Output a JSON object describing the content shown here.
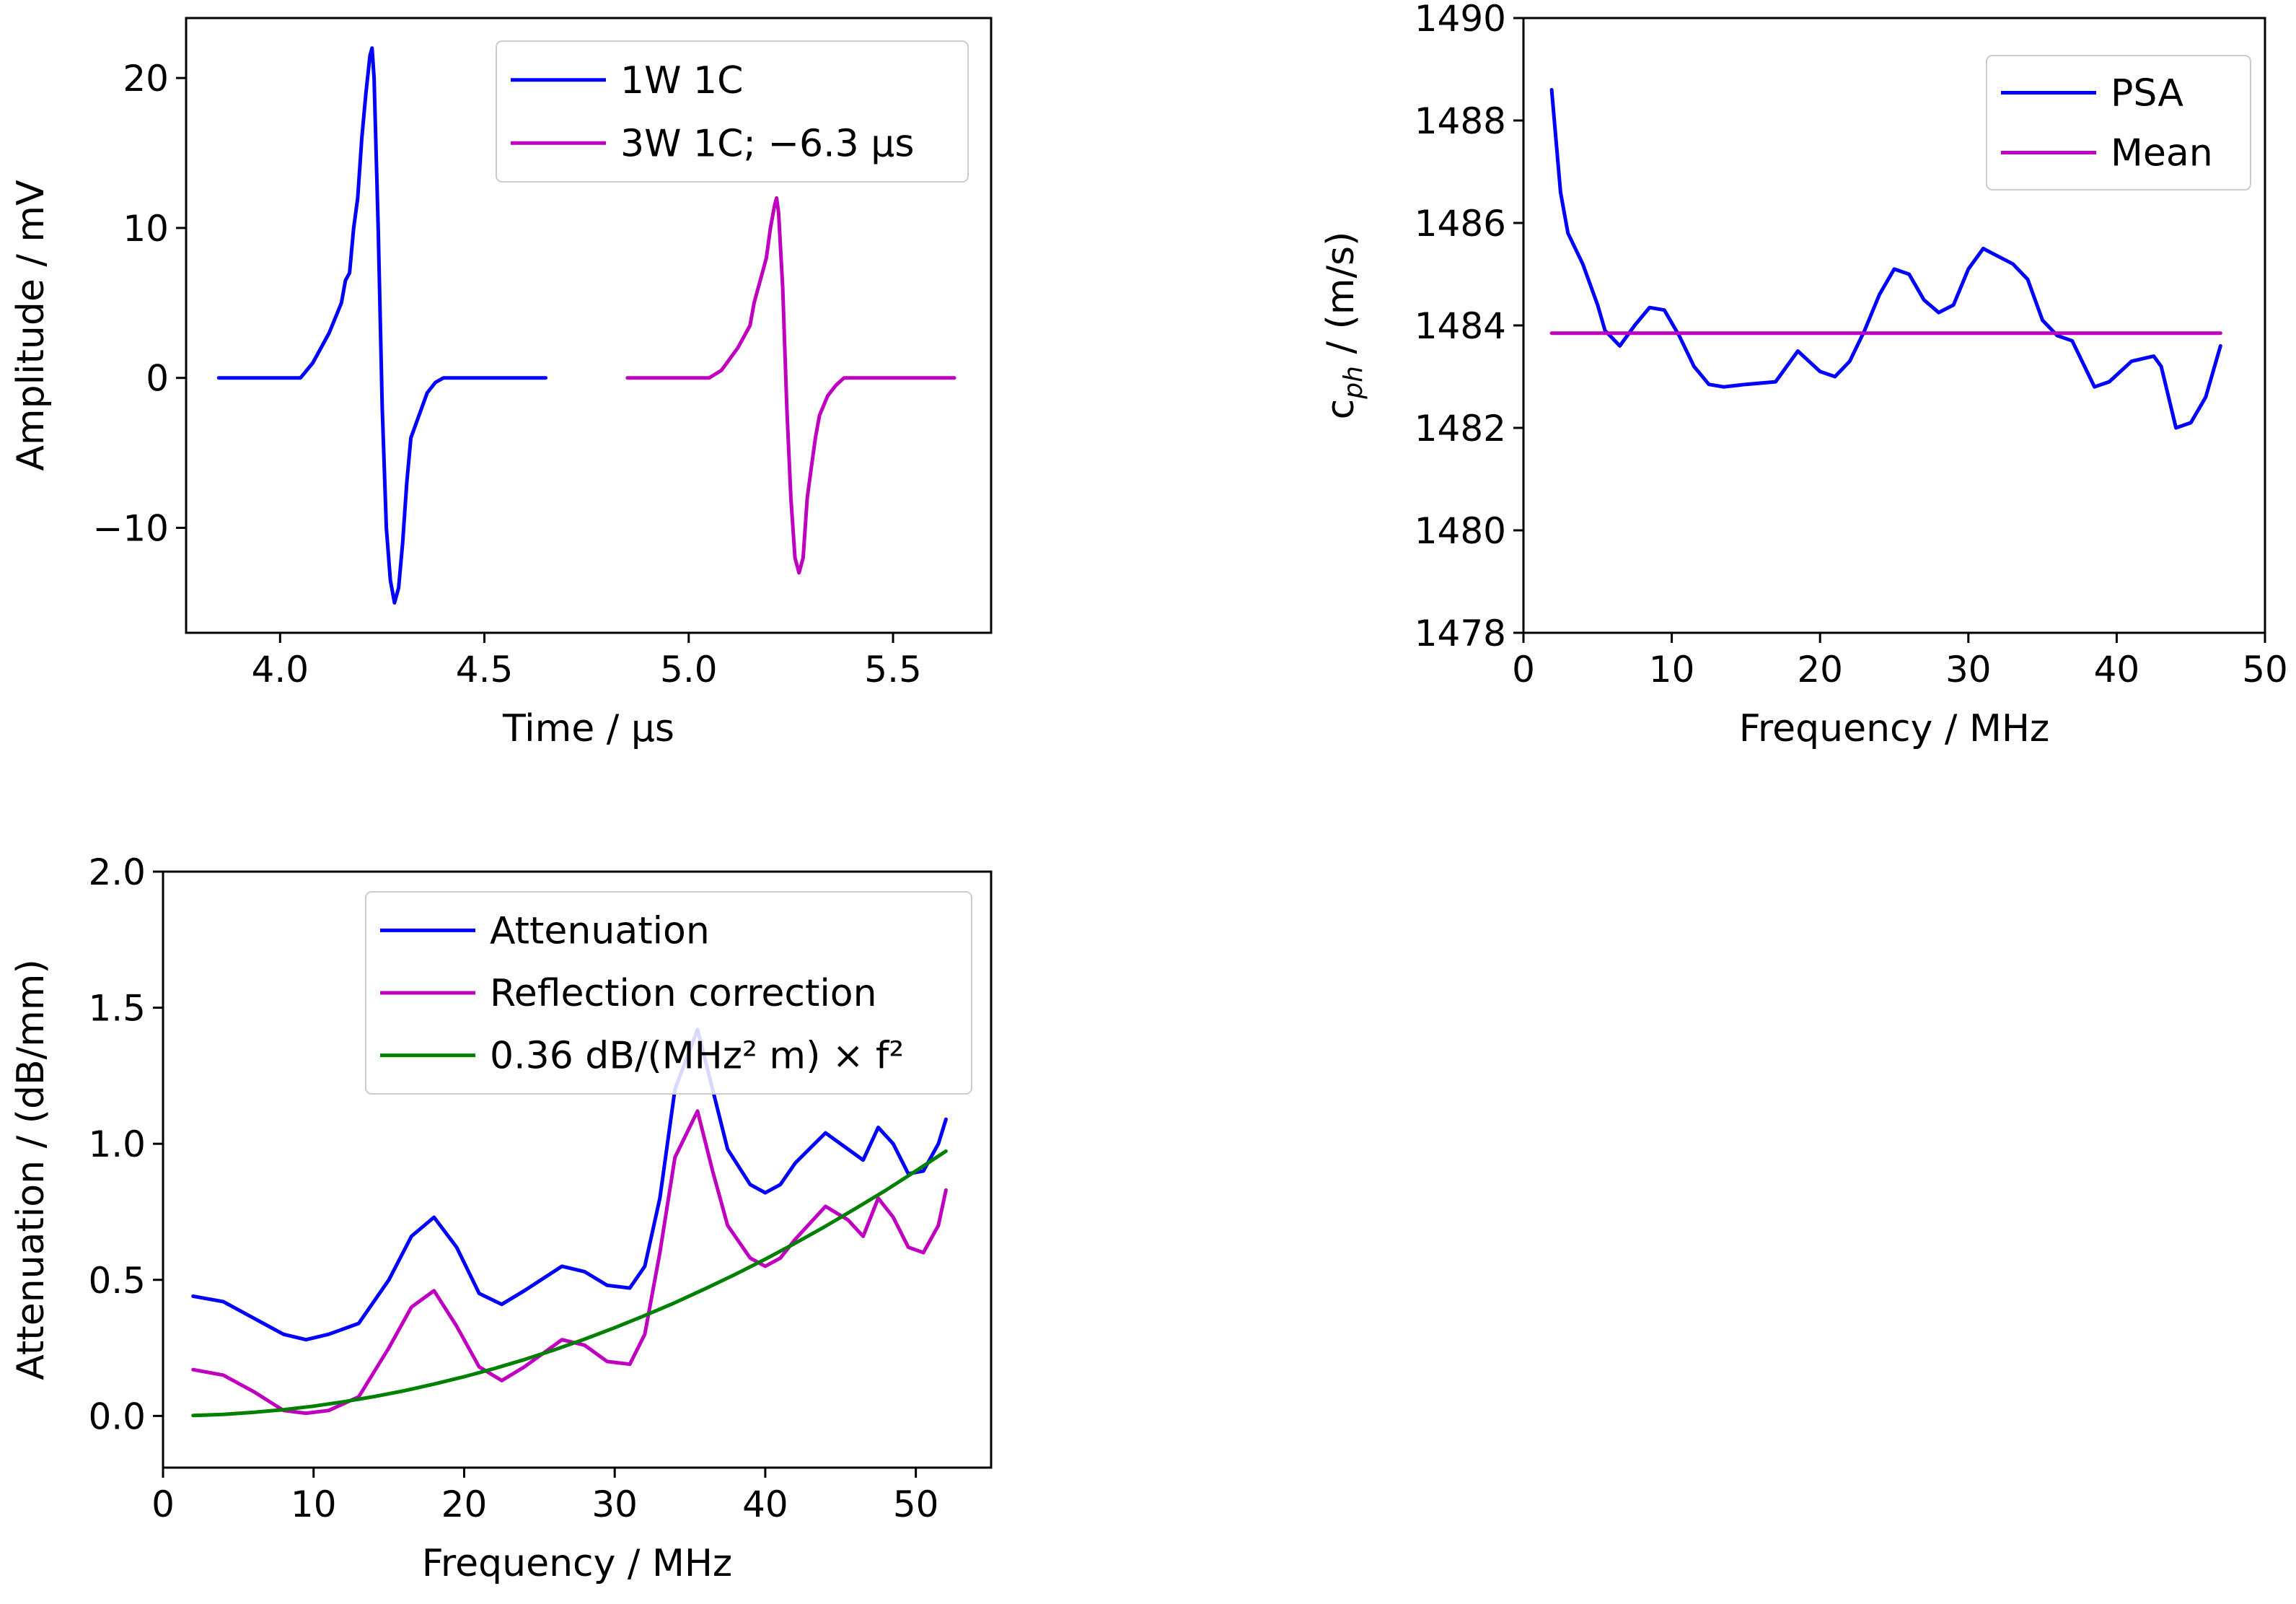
{
  "chart_data": [
    {
      "id": "amplitude",
      "type": "line",
      "title": "",
      "xlabel": "Time / µs",
      "ylabel": "Amplitude / mV",
      "xlim": [
        3.77,
        5.74
      ],
      "ylim": [
        -17,
        24
      ],
      "xticks": [
        4.0,
        4.5,
        5.0,
        5.5
      ],
      "xtick_labels": [
        "4.0",
        "4.5",
        "5.0",
        "5.5"
      ],
      "yticks": [
        -10,
        0,
        10,
        20
      ],
      "ytick_labels": [
        "−10",
        "0",
        "10",
        "20"
      ],
      "legend_position": "top-right",
      "series": [
        {
          "name": "1W 1C",
          "color": "#0000ff",
          "x": [
            3.85,
            4.05,
            4.08,
            4.12,
            4.15,
            4.16,
            4.17,
            4.18,
            4.19,
            4.2,
            4.21,
            4.22,
            4.225,
            4.23,
            4.24,
            4.25,
            4.26,
            4.27,
            4.28,
            4.29,
            4.3,
            4.31,
            4.32,
            4.34,
            4.36,
            4.38,
            4.4,
            4.42,
            4.45,
            4.5,
            4.65
          ],
          "values": [
            0,
            0,
            1,
            3,
            5,
            6.5,
            7,
            10,
            12,
            16,
            19,
            21.5,
            22,
            20,
            10,
            -2,
            -10,
            -13.5,
            -15,
            -14,
            -11,
            -7,
            -4,
            -2.5,
            -1,
            -0.3,
            0,
            0,
            0,
            0,
            0
          ]
        },
        {
          "name": "3W 1C; −6.3 µs",
          "color": "#c000c0",
          "x": [
            4.85,
            5.05,
            5.08,
            5.12,
            5.15,
            5.16,
            5.17,
            5.18,
            5.19,
            5.2,
            5.21,
            5.215,
            5.22,
            5.23,
            5.24,
            5.25,
            5.26,
            5.27,
            5.28,
            5.29,
            5.3,
            5.31,
            5.32,
            5.34,
            5.36,
            5.38,
            5.4,
            5.42,
            5.45,
            5.5,
            5.65
          ],
          "values": [
            0,
            0,
            0.5,
            2,
            3.5,
            5,
            6,
            7,
            8,
            10,
            11.5,
            12,
            11,
            6,
            -2,
            -8,
            -12,
            -13,
            -12,
            -8,
            -6,
            -4,
            -2.5,
            -1.2,
            -0.5,
            0,
            0,
            0,
            0,
            0,
            0
          ]
        }
      ]
    },
    {
      "id": "phase-velocity",
      "type": "line",
      "title": "",
      "xlabel": "Frequency / MHz",
      "ylabel_parts": [
        "c",
        "ph",
        " / (m/s)"
      ],
      "xlim": [
        0,
        50
      ],
      "ylim": [
        1478,
        1490
      ],
      "xticks": [
        0,
        10,
        20,
        30,
        40,
        50
      ],
      "xtick_labels": [
        "0",
        "10",
        "20",
        "30",
        "40",
        "50"
      ],
      "yticks": [
        1478,
        1480,
        1482,
        1484,
        1486,
        1488,
        1490
      ],
      "ytick_labels": [
        "1478",
        "1480",
        "1482",
        "1484",
        "1486",
        "1488",
        "1490"
      ],
      "legend_position": "top-right",
      "series": [
        {
          "name": "PSA",
          "color": "#0000ff",
          "x": [
            1.9,
            2.5,
            3,
            4,
            5,
            5.5,
            6.5,
            7.5,
            8.5,
            9.5,
            10.5,
            11.5,
            12.5,
            13.5,
            15,
            17,
            18.5,
            20,
            21,
            22,
            23,
            24,
            25,
            26,
            27,
            28,
            29,
            30,
            31,
            32,
            33,
            34,
            35,
            36,
            37,
            38,
            38.5,
            39.5,
            41,
            42.5,
            43,
            43.5,
            44,
            45,
            46,
            47
          ],
          "values": [
            1488.6,
            1486.6,
            1485.8,
            1485.2,
            1484.4,
            1483.9,
            1483.6,
            1484,
            1484.35,
            1484.3,
            1483.8,
            1483.2,
            1482.85,
            1482.8,
            1482.85,
            1482.9,
            1483.5,
            1483.1,
            1483,
            1483.3,
            1483.9,
            1484.6,
            1485.1,
            1485.0,
            1484.5,
            1484.25,
            1484.4,
            1485.1,
            1485.5,
            1485.35,
            1485.2,
            1484.9,
            1484.1,
            1483.8,
            1483.7,
            1483.1,
            1482.8,
            1482.9,
            1483.3,
            1483.4,
            1483.2,
            1482.6,
            1482.0,
            1482.1,
            1482.6,
            1483.6
          ]
        },
        {
          "name": "Mean",
          "color": "#c000c0",
          "x": [
            1.9,
            47
          ],
          "values": [
            1483.85,
            1483.85
          ]
        }
      ]
    },
    {
      "id": "attenuation",
      "type": "line",
      "title": "",
      "xlabel": "Frequency / MHz",
      "ylabel": "Attenuation / (dB/mm)",
      "xlim": [
        0,
        55
      ],
      "ylim": [
        -0.19,
        2.0
      ],
      "xticks": [
        0,
        10,
        20,
        30,
        40,
        50
      ],
      "xtick_labels": [
        "0",
        "10",
        "20",
        "30",
        "40",
        "50"
      ],
      "yticks": [
        0.0,
        0.5,
        1.0,
        1.5,
        2.0
      ],
      "ytick_labels": [
        "0.0",
        "0.5",
        "1.0",
        "1.5",
        "2.0"
      ],
      "legend_position": "top-right",
      "series": [
        {
          "name": "Attenuation",
          "color": "#0000ff",
          "x": [
            2,
            4,
            6,
            8,
            9.5,
            11,
            13,
            15,
            16.5,
            18,
            19.5,
            21,
            22.5,
            24,
            26.5,
            28,
            29.5,
            31,
            32,
            33,
            34,
            35.5,
            36.5,
            37.5,
            39,
            40,
            41,
            42,
            44,
            45.5,
            46.5,
            47.5,
            48.5,
            49.5,
            50.5,
            51.5,
            52
          ],
          "values": [
            0.44,
            0.42,
            0.36,
            0.3,
            0.28,
            0.3,
            0.34,
            0.5,
            0.66,
            0.73,
            0.62,
            0.45,
            0.41,
            0.46,
            0.55,
            0.53,
            0.48,
            0.47,
            0.55,
            0.8,
            1.2,
            1.42,
            1.2,
            0.98,
            0.85,
            0.82,
            0.85,
            0.93,
            1.04,
            0.98,
            0.94,
            1.06,
            1.0,
            0.89,
            0.9,
            1.0,
            1.09
          ]
        },
        {
          "name": "Reflection correction",
          "color": "#c000c0",
          "x": [
            2,
            4,
            6,
            8,
            9.5,
            11,
            13,
            15,
            16.5,
            18,
            19.5,
            21,
            22.5,
            24,
            26.5,
            28,
            29.5,
            31,
            32,
            33,
            34,
            35.5,
            36.5,
            37.5,
            39,
            40,
            41,
            42,
            44,
            45.5,
            46.5,
            47.5,
            48.5,
            49.5,
            50.5,
            51.5,
            52
          ],
          "values": [
            0.17,
            0.15,
            0.09,
            0.02,
            0.01,
            0.02,
            0.07,
            0.25,
            0.4,
            0.46,
            0.33,
            0.18,
            0.13,
            0.18,
            0.28,
            0.26,
            0.2,
            0.19,
            0.3,
            0.6,
            0.95,
            1.12,
            0.9,
            0.7,
            0.58,
            0.55,
            0.58,
            0.65,
            0.77,
            0.72,
            0.66,
            0.8,
            0.73,
            0.62,
            0.6,
            0.7,
            0.83
          ]
        },
        {
          "name": "0.36 dB/(MHz² m) × f²",
          "color": "#008000",
          "x": [
            2,
            4,
            6,
            8,
            10,
            12,
            14,
            16,
            18,
            20,
            22,
            24,
            26,
            28,
            30,
            32,
            34,
            36,
            38,
            40,
            42,
            44,
            46,
            48,
            50,
            52
          ],
          "values": [
            0.0014,
            0.0058,
            0.013,
            0.023,
            0.036,
            0.052,
            0.071,
            0.092,
            0.117,
            0.144,
            0.174,
            0.207,
            0.243,
            0.282,
            0.324,
            0.369,
            0.416,
            0.467,
            0.52,
            0.576,
            0.635,
            0.697,
            0.762,
            0.829,
            0.9,
            0.973
          ]
        }
      ]
    }
  ]
}
